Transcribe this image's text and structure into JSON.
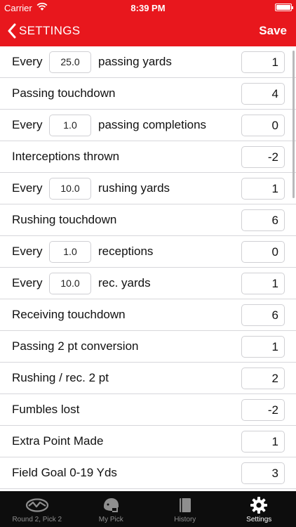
{
  "status_bar": {
    "carrier": "Carrier",
    "time": "8:39 PM"
  },
  "nav": {
    "back_label": "SETTINGS",
    "save_label": "Save"
  },
  "rows": [
    {
      "type": "multiplier",
      "prefix": "Every",
      "multiplier": "25.0",
      "suffix": "passing yards",
      "points": "1"
    },
    {
      "type": "simple",
      "label": "Passing touchdown",
      "points": "4"
    },
    {
      "type": "multiplier",
      "prefix": "Every",
      "multiplier": "1.0",
      "suffix": "passing completions",
      "points": "0"
    },
    {
      "type": "simple",
      "label": "Interceptions thrown",
      "points": "-2"
    },
    {
      "type": "multiplier",
      "prefix": "Every",
      "multiplier": "10.0",
      "suffix": "rushing yards",
      "points": "1"
    },
    {
      "type": "simple",
      "label": "Rushing touchdown",
      "points": "6"
    },
    {
      "type": "multiplier",
      "prefix": "Every",
      "multiplier": "1.0",
      "suffix": "receptions",
      "points": "0"
    },
    {
      "type": "multiplier",
      "prefix": "Every",
      "multiplier": "10.0",
      "suffix": "rec. yards",
      "points": "1"
    },
    {
      "type": "simple",
      "label": "Receiving touchdown",
      "points": "6"
    },
    {
      "type": "simple",
      "label": "Passing 2 pt conversion",
      "points": "1"
    },
    {
      "type": "simple",
      "label": "Rushing / rec. 2 pt",
      "points": "2"
    },
    {
      "type": "simple",
      "label": "Fumbles lost",
      "points": "-2"
    },
    {
      "type": "simple",
      "label": "Extra Point Made",
      "points": "1"
    },
    {
      "type": "simple",
      "label": "Field Goal 0-19 Yds",
      "points": "3"
    }
  ],
  "tabs": [
    {
      "label": "Round 2, Pick 2",
      "icon": "draft-icon",
      "active": false
    },
    {
      "label": "My Pick",
      "icon": "helmet-icon",
      "active": false
    },
    {
      "label": "History",
      "icon": "book-icon",
      "active": false
    },
    {
      "label": "Settings",
      "icon": "gear-icon",
      "active": true
    }
  ],
  "colors": {
    "accent": "#e8171d",
    "tab_bar": "#0d0d0d"
  }
}
